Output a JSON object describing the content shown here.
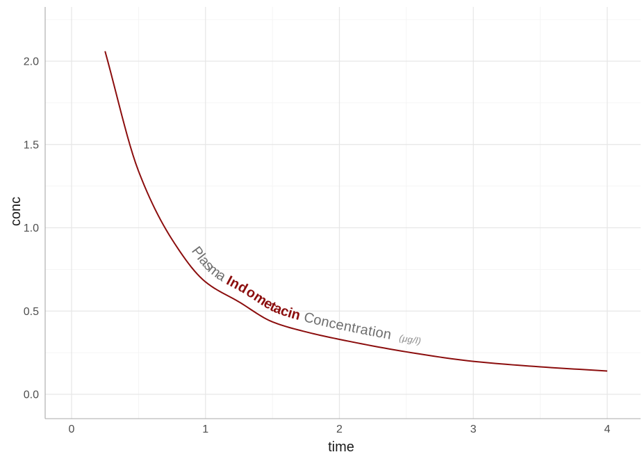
{
  "figure": {
    "background": "#ffffff",
    "x_axis": {
      "title": "time",
      "ticks": [
        "0",
        "1",
        "2",
        "3",
        "4"
      ]
    },
    "y_axis": {
      "title": "conc",
      "ticks": [
        "0.0",
        "0.5",
        "1.0",
        "1.5",
        "2.0"
      ]
    },
    "curve_label": {
      "segments": [
        {
          "text": "Plasma ",
          "color": "#6e6e6e",
          "bold": false,
          "italic": false,
          "size": 20
        },
        {
          "text": "Indometacin",
          "color": "#8b0d0d",
          "bold": true,
          "italic": false,
          "size": 20
        },
        {
          "text": " Concentration",
          "color": "#6e6e6e",
          "bold": false,
          "italic": false,
          "size": 20
        },
        {
          "text": "   (μg/l)",
          "color": "#8a8a8a",
          "bold": false,
          "italic": true,
          "size": 13
        }
      ]
    },
    "colors": {
      "line": "#8b0d0d",
      "grid_major": "#e6e6e6",
      "grid_minor": "#f2f2f2",
      "axis_line": "#a8a8a8",
      "tick_text": "#4d4d4d",
      "title_text": "#1a1a1a"
    }
  },
  "chart_data": {
    "type": "line",
    "title": "Plasma Indometacin Concentration (μg/l)",
    "xlabel": "time",
    "ylabel": "conc",
    "x": [
      0.25,
      0.5,
      0.75,
      1.0,
      1.25,
      1.5,
      1.75,
      2.0,
      2.5,
      3.0,
      3.5,
      4.0
    ],
    "y": [
      2.06,
      1.34,
      0.93,
      0.675,
      0.555,
      0.435,
      0.375,
      0.33,
      0.255,
      0.198,
      0.165,
      0.14
    ],
    "xlim": [
      -0.2,
      4.25
    ],
    "ylim": [
      -0.15,
      2.33
    ],
    "x_major_ticks": [
      0,
      1,
      2,
      3,
      4
    ],
    "y_major_ticks": [
      0.0,
      0.5,
      1.0,
      1.5,
      2.0
    ],
    "grid": "on",
    "legend": "none",
    "line_color": "#8b0d0d"
  }
}
